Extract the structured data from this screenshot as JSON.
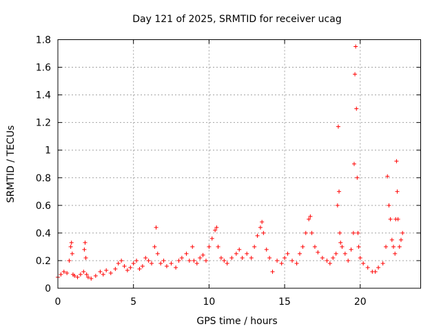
{
  "chart_data": {
    "type": "scatter",
    "title": "Day 121 of 2025, SRMTID for receiver ucag",
    "xlabel": "GPS time / hours",
    "ylabel": "SRMTID / TECUs",
    "xlim": [
      0,
      24
    ],
    "ylim": [
      0,
      1.8
    ],
    "xticks": [
      0,
      5,
      10,
      15,
      20
    ],
    "xtick_labels": [
      "0",
      "5",
      "10",
      "15",
      "20"
    ],
    "yticks": [
      0,
      0.2,
      0.4,
      0.6,
      0.8,
      1,
      1.2,
      1.4,
      1.6,
      1.8
    ],
    "ytick_labels": [
      "0",
      "0.2",
      "0.4",
      "0.6",
      "0.8",
      "1",
      "1.2",
      "1.4",
      "1.6",
      "1.8"
    ],
    "grid": true,
    "marker": "+",
    "series": [
      {
        "name": "SRMTID",
        "color": "#ff0000",
        "x": [
          0.0,
          0.2,
          0.4,
          0.6,
          0.75,
          0.85,
          0.9,
          0.95,
          1.0,
          1.1,
          1.3,
          1.5,
          1.7,
          1.75,
          1.8,
          1.85,
          1.9,
          2.0,
          2.2,
          2.5,
          2.8,
          3.0,
          3.2,
          3.5,
          3.8,
          4.0,
          4.2,
          4.4,
          4.6,
          4.8,
          5.0,
          5.2,
          5.4,
          5.6,
          5.8,
          6.0,
          6.2,
          6.4,
          6.5,
          6.6,
          6.8,
          7.0,
          7.2,
          7.5,
          7.8,
          8.0,
          8.2,
          8.5,
          8.7,
          8.9,
          9.0,
          9.2,
          9.4,
          9.6,
          9.8,
          10.0,
          10.2,
          10.4,
          10.5,
          10.6,
          10.8,
          11.0,
          11.2,
          11.5,
          11.8,
          12.0,
          12.2,
          12.5,
          12.8,
          13.0,
          13.2,
          13.4,
          13.5,
          13.6,
          13.8,
          14.0,
          14.2,
          14.5,
          14.8,
          15.0,
          15.2,
          15.5,
          15.8,
          16.0,
          16.2,
          16.4,
          16.6,
          16.7,
          16.8,
          17.0,
          17.2,
          17.5,
          17.8,
          18.0,
          18.2,
          18.4,
          18.5,
          18.55,
          18.6,
          18.65,
          18.7,
          18.8,
          19.0,
          19.2,
          19.4,
          19.55,
          19.6,
          19.65,
          19.7,
          19.75,
          19.8,
          19.85,
          19.9,
          20.0,
          20.2,
          20.5,
          20.8,
          21.0,
          21.2,
          21.5,
          21.7,
          21.8,
          21.9,
          22.0,
          22.1,
          22.2,
          22.3,
          22.35,
          22.4,
          22.45,
          22.5,
          22.6,
          22.7,
          22.8
        ],
        "y": [
          0.08,
          0.1,
          0.12,
          0.11,
          0.2,
          0.3,
          0.33,
          0.25,
          0.1,
          0.09,
          0.08,
          0.1,
          0.12,
          0.28,
          0.33,
          0.22,
          0.1,
          0.08,
          0.07,
          0.09,
          0.12,
          0.1,
          0.13,
          0.11,
          0.14,
          0.18,
          0.2,
          0.16,
          0.13,
          0.15,
          0.18,
          0.2,
          0.14,
          0.16,
          0.22,
          0.2,
          0.18,
          0.3,
          0.44,
          0.25,
          0.18,
          0.2,
          0.16,
          0.18,
          0.15,
          0.2,
          0.22,
          0.25,
          0.2,
          0.3,
          0.2,
          0.18,
          0.22,
          0.24,
          0.2,
          0.3,
          0.36,
          0.42,
          0.44,
          0.3,
          0.22,
          0.2,
          0.18,
          0.22,
          0.25,
          0.28,
          0.22,
          0.25,
          0.22,
          0.3,
          0.38,
          0.44,
          0.48,
          0.4,
          0.28,
          0.22,
          0.12,
          0.2,
          0.18,
          0.22,
          0.25,
          0.2,
          0.18,
          0.25,
          0.3,
          0.4,
          0.5,
          0.52,
          0.4,
          0.3,
          0.26,
          0.22,
          0.2,
          0.18,
          0.22,
          0.25,
          0.6,
          1.17,
          0.7,
          0.4,
          0.33,
          0.3,
          0.25,
          0.2,
          0.28,
          0.4,
          0.9,
          1.55,
          1.75,
          1.3,
          0.8,
          0.4,
          0.3,
          0.22,
          0.18,
          0.15,
          0.12,
          0.12,
          0.15,
          0.18,
          0.3,
          0.81,
          0.6,
          0.5,
          0.35,
          0.3,
          0.25,
          0.5,
          0.92,
          0.7,
          0.5,
          0.3,
          0.35,
          0.4
        ]
      }
    ]
  }
}
